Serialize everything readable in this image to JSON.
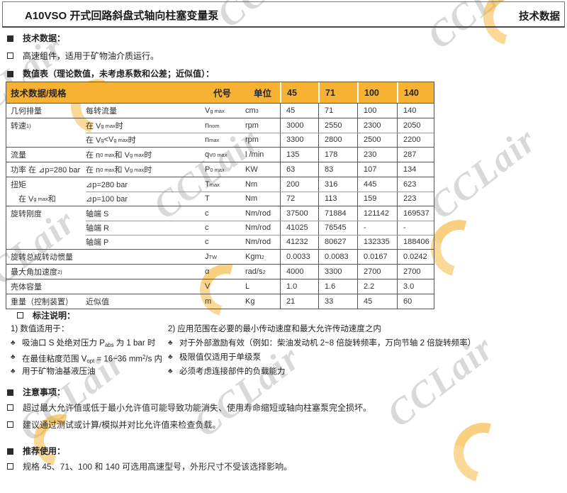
{
  "header": {
    "title": "A10VSO 开式回路斜盘式轴向柱塞变量泵",
    "right_label": "技术数据"
  },
  "sections": {
    "tech_heading": "技术数据：",
    "intro": "高速组件，适用于矿物油介质运行。",
    "table_title": "数值表（理论数值，未考虑系数和公差；近似值）："
  },
  "table": {
    "headers": {
      "spec": "技术数据/规格",
      "code": "代号",
      "unit": "单位",
      "sizes": [
        "45",
        "71",
        "100",
        "140"
      ]
    },
    "rows": [
      {
        "label1": "几何排量",
        "label2": "每转流量",
        "code": "V_{g max}",
        "unit": "cm^{3}",
        "values": [
          "45",
          "71",
          "100",
          "140"
        ],
        "divider": "full"
      },
      {
        "label1": "转速 ^{1)}",
        "label2": "在 V_{g max} 时",
        "code": "n_{nom}",
        "unit": "rpm",
        "values": [
          "3000",
          "2550",
          "2300",
          "2050"
        ],
        "divider": "full"
      },
      {
        "label1": "",
        "label2": "在 V_{g}<V_{g max} 时",
        "code": "n_{max}",
        "unit": "rpm",
        "values": [
          "3300",
          "2800",
          "2500",
          "2200"
        ],
        "divider": "inner"
      },
      {
        "label1": "流量",
        "label2": "在 n_{0 max} 和 V_{g max} 时",
        "code": "q_{V0 max}",
        "unit": "l /min",
        "values": [
          "135",
          "178",
          "230",
          "287"
        ],
        "divider": "full"
      },
      {
        "label1": "功率 在 ⊿p=280 bar",
        "label2": "在 n_{0 max} 和 V_{g max} 时",
        "code": "P_{0 max}",
        "unit": "KW",
        "values": [
          "63",
          "83",
          "107",
          "134"
        ],
        "divider": "full"
      },
      {
        "label1": "扭矩",
        "label2": "⊿p=280 bar",
        "code": "T_{max}",
        "unit": "Nm",
        "values": [
          "200",
          "316",
          "445",
          "623"
        ],
        "divider": "full"
      },
      {
        "label1": "　在 V_{g max} 和",
        "label2": "⊿p=100 bar",
        "code": "T",
        "unit": "Nm",
        "values": [
          "72",
          "113",
          "159",
          "223"
        ],
        "divider": "inner"
      },
      {
        "label1": "旋转刚度",
        "label2": "轴端 S",
        "code": "c",
        "unit": "Nm/rod",
        "values": [
          "37500",
          "71884",
          "121142",
          "169537"
        ],
        "divider": "full"
      },
      {
        "label1": "",
        "label2": "轴端 R",
        "code": "c",
        "unit": "Nm/rod",
        "values": [
          "41025",
          "76545",
          "-",
          "-"
        ],
        "divider": "inner"
      },
      {
        "label1": "",
        "label2": "轴端 P",
        "code": "c",
        "unit": "Nm/rod",
        "values": [
          "41232",
          "80627",
          "132335",
          "188406"
        ],
        "divider": "inner"
      },
      {
        "label1": "旋转总成转动惯量",
        "label2": "",
        "code": "J_{TW}",
        "unit": "Kgm^{2}",
        "values": [
          "0.0033",
          "0.0083",
          "0.0167",
          "0.0242"
        ],
        "divider": "full"
      },
      {
        "label1": "最大角加速度 ^{2)}",
        "label2": "",
        "code": "α",
        "unit": "rad/s^{2}",
        "values": [
          "4000",
          "3300",
          "2700",
          "2700"
        ],
        "divider": "full"
      },
      {
        "label1": "壳体容量",
        "label2": "",
        "code": "V",
        "unit": "L",
        "values": [
          "1.0",
          "1.6",
          "2.2",
          "3.0"
        ],
        "divider": "full"
      },
      {
        "label1": "重量（控制装置）",
        "label2": "近似值",
        "code": "m",
        "unit": "Kg",
        "values": [
          "21",
          "33",
          "45",
          "60"
        ],
        "divider": "full"
      }
    ]
  },
  "footnotes": {
    "heading": "标注说明：",
    "left": {
      "title": "1) 数值适用于：",
      "items": [
        "吸油口 S 处绝对压力 P_{abs} 为 1 bar 时",
        "在最佳粘度范围 V_{opt} = 16~36 mm^{2}/s 内",
        "用于矿物油基液压油"
      ]
    },
    "right": {
      "title": "2) 应用范围在必要的最小传动速度和最大允许传动速度之内",
      "items": [
        "对于外部激励有效（例如：柴油发动机 2~8 倍旋转频率，万向节轴 2 倍旋转频率）",
        "极限值仅适用于单级泵",
        "必须考虑连接部件的负载能力"
      ]
    }
  },
  "notices": {
    "heading": "注意事项：",
    "items": [
      "超过最大允许值或低于最小允许值可能导致功能消失、使用寿命缩短或轴向柱塞泵完全损坏。",
      "建议通过测试或计算/模拟并对比允许值来检查负载。"
    ]
  },
  "recommend": {
    "heading": "推荐使用：",
    "items": [
      "规格 45、71、100 和 140 可选用高速型号，外形尺寸不受该选择影响。"
    ]
  },
  "watermark": {
    "text": "CCLair"
  },
  "colors": {
    "table_header_bg": "#F7B233",
    "watermark_orange": "#F5A819",
    "watermark_gray": "#6E6E6E",
    "border_dark": "#555555",
    "border_light": "#9A9A9A"
  }
}
